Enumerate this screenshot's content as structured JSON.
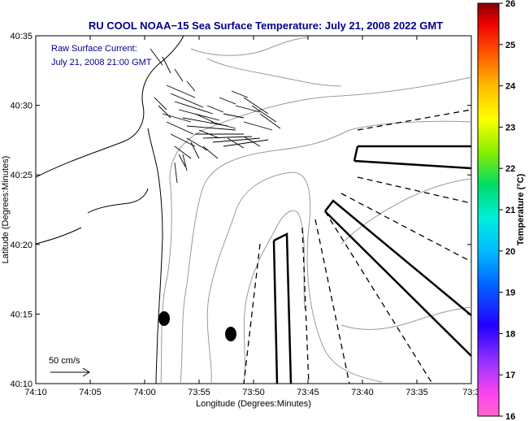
{
  "chart_data": {
    "type": "map",
    "title": "RU COOL  NOAA−15  Sea Surface Temperature:  July 21, 2008 2022 GMT",
    "annotations": [
      "Raw Surface Current:",
      "July 21, 2008 21:00 GMT"
    ],
    "xlabel": "Longitude (Degrees:Minutes)",
    "ylabel": "Latitude (Degrees:Minutes)",
    "x_ticks": [
      "74:10",
      "74:05",
      "74:00",
      "73:55",
      "73:50",
      "73:45",
      "73:40",
      "73:35",
      "73:3"
    ],
    "y_ticks": [
      "40:10",
      "40:15",
      "40:20",
      "40:25",
      "40:30",
      "40:35"
    ],
    "xlim_minutes_west": [
      70,
      30
    ],
    "ylim_minutes_north": [
      10,
      35
    ],
    "scale_label": "50 cm/s",
    "colorbar": {
      "label": "Temperature (°C)",
      "min": 16,
      "max": 26,
      "ticks": [
        "16",
        "17",
        "18",
        "19",
        "20",
        "21",
        "22",
        "23",
        "24",
        "25",
        "26"
      ]
    }
  }
}
